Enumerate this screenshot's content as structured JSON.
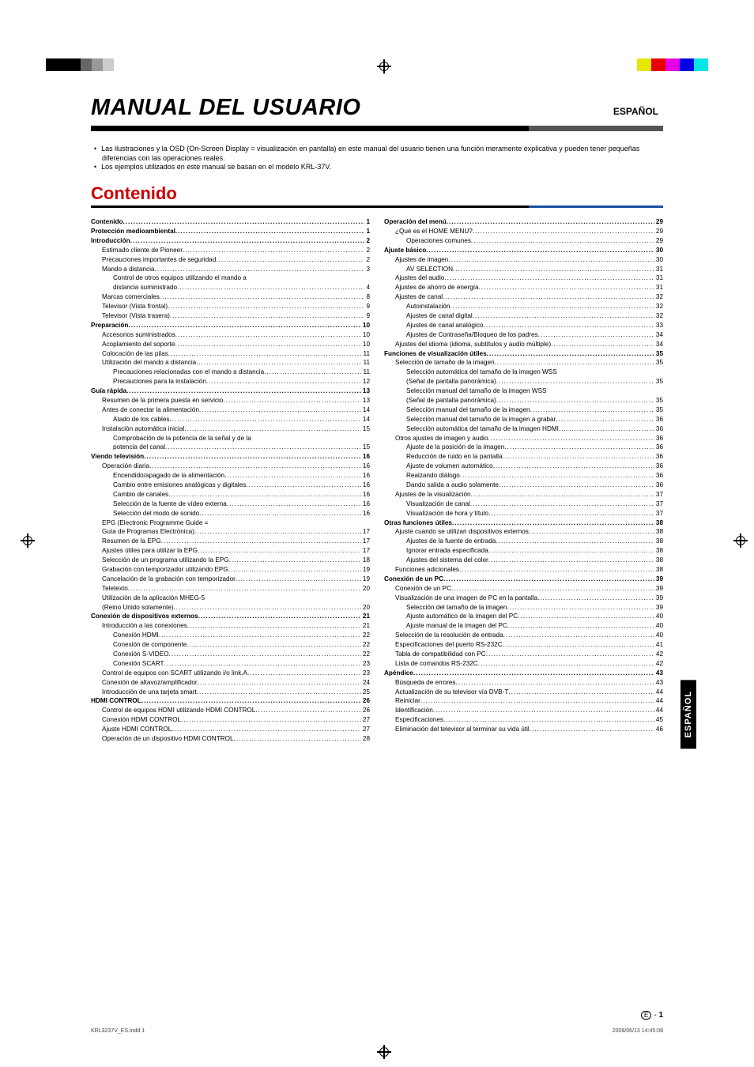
{
  "document": {
    "title": "MANUAL DEL USUARIO",
    "language_badge": "ESPAÑOL",
    "notes": [
      "Las ilustraciones y la OSD (On-Screen Display = visualización en pantalla) en este manual del usuario tienen una función meramente explicativa y pueden tener pequeñas diferencias con las operaciones reales.",
      "Los ejemplos utilizados en este manual se basan en el modelo KRL-37V."
    ],
    "section_heading": "Contenido",
    "side_tab": "ESPAÑOL",
    "page_number_prefix": "E",
    "page_number": "1",
    "footer_left": "KRL3237V_ES.indd   1",
    "footer_right": "2008/06/13   14:45:08",
    "colors": {
      "heading_red": "#c00000",
      "rule_black": "#000000",
      "rule_gray": "#555555",
      "rule_blue": "#1a4fa0",
      "text": "#000000",
      "side_tab_bg": "#000000",
      "side_tab_fg": "#ffffff"
    },
    "typography": {
      "title_pt": 29,
      "title_style": "bold italic",
      "heading_pt": 22,
      "body_pt": 9,
      "toc_pt": 8.2
    }
  },
  "toc_left": [
    {
      "lvl": 0,
      "t": "Contenido",
      "p": "1"
    },
    {
      "lvl": 0,
      "t": "Protección medioambiental",
      "p": "1"
    },
    {
      "lvl": 0,
      "t": "Introducción",
      "p": "2"
    },
    {
      "lvl": 1,
      "t": "Estimado cliente de Pioneer",
      "p": "2"
    },
    {
      "lvl": 1,
      "t": "Precauciones importantes de seguridad",
      "p": "2"
    },
    {
      "lvl": 1,
      "t": "Mando a distancia",
      "p": "3"
    },
    {
      "lvl": 2,
      "t": "Control de otros equipos utilizando el mando a",
      "p": ""
    },
    {
      "lvl": 2,
      "t": "distancia suministrado",
      "p": "4"
    },
    {
      "lvl": 1,
      "t": "Marcas comerciales",
      "p": "8"
    },
    {
      "lvl": 1,
      "t": "Televisor (Vista frontal)",
      "p": "9"
    },
    {
      "lvl": 1,
      "t": "Televisor (Vista trasera)",
      "p": "9"
    },
    {
      "lvl": 0,
      "t": "Preparación",
      "p": "10"
    },
    {
      "lvl": 1,
      "t": "Accesorios suministrados",
      "p": "10"
    },
    {
      "lvl": 1,
      "t": "Acoplamiento del soporte",
      "p": "10"
    },
    {
      "lvl": 1,
      "t": "Colocación de las pilas",
      "p": "11"
    },
    {
      "lvl": 1,
      "t": "Utilización del mando a distancia",
      "p": "11"
    },
    {
      "lvl": 2,
      "t": "Precauciones relacionadas con el mando a distancia",
      "p": "11"
    },
    {
      "lvl": 2,
      "t": "Precauciones para la instalación",
      "p": "12"
    },
    {
      "lvl": 0,
      "t": "Guía rápida",
      "p": "13"
    },
    {
      "lvl": 1,
      "t": "Resumen de la primera puesta en servicio",
      "p": "13"
    },
    {
      "lvl": 1,
      "t": "Antes de conectar la alimentación",
      "p": "14"
    },
    {
      "lvl": 2,
      "t": "Atado de los cables",
      "p": "14"
    },
    {
      "lvl": 1,
      "t": "Instalación automática inicial",
      "p": "15"
    },
    {
      "lvl": 2,
      "t": "Comprobación de la potencia de la señal y de la",
      "p": ""
    },
    {
      "lvl": 2,
      "t": "potencia del canal",
      "p": "15"
    },
    {
      "lvl": 0,
      "t": "Viendo televisión",
      "p": "16"
    },
    {
      "lvl": 1,
      "t": "Operación diaria",
      "p": "16"
    },
    {
      "lvl": 2,
      "t": "Encendido/apagado de la alimentación",
      "p": "16"
    },
    {
      "lvl": 2,
      "t": "Cambio entre emisiones analógicas y digitales",
      "p": "16"
    },
    {
      "lvl": 2,
      "t": "Cambio de canales",
      "p": "16"
    },
    {
      "lvl": 2,
      "t": "Selección de la fuente de vídeo externa",
      "p": "16"
    },
    {
      "lvl": 2,
      "t": "Selección del modo de sonido",
      "p": "16"
    },
    {
      "lvl": 1,
      "t": "EPG (Electronic Programme Guide =",
      "p": ""
    },
    {
      "lvl": 1,
      "t": "Guía de Programas Electrónica)",
      "p": "17"
    },
    {
      "lvl": 1,
      "t": "Resumen de la EPG",
      "p": "17"
    },
    {
      "lvl": 1,
      "t": "Ajustes útiles para utilizar la EPG",
      "p": "17"
    },
    {
      "lvl": 1,
      "t": "Selección de un programa utilizando la EPG",
      "p": "18"
    },
    {
      "lvl": 1,
      "t": "Grabación con temporizador utilizando EPG",
      "p": "19"
    },
    {
      "lvl": 1,
      "t": "Cancelación de la grabación con temporizador",
      "p": "19"
    },
    {
      "lvl": 1,
      "t": "Teletexto",
      "p": "20"
    },
    {
      "lvl": 1,
      "t": "Utilización de la aplicación MHEG-5",
      "p": ""
    },
    {
      "lvl": 1,
      "t": "(Reino Unido solamente)",
      "p": "20"
    },
    {
      "lvl": 0,
      "t": "Conexión de dispositivos externos",
      "p": "21"
    },
    {
      "lvl": 1,
      "t": "Introducción a las conexiones",
      "p": "21"
    },
    {
      "lvl": 2,
      "t": "Conexión HDMI",
      "p": "22"
    },
    {
      "lvl": 2,
      "t": "Conexión de componente",
      "p": "22"
    },
    {
      "lvl": 2,
      "t": "Conexión S-VIDEO",
      "p": "22"
    },
    {
      "lvl": 2,
      "t": "Conexión SCART",
      "p": "23"
    },
    {
      "lvl": 1,
      "t": "Control de equipos con SCART utilizando i/o link.A",
      "p": "23"
    },
    {
      "lvl": 1,
      "t": "Conexión de altavoz/amplificador",
      "p": "24"
    },
    {
      "lvl": 1,
      "t": "Introducción de una tarjeta smart",
      "p": "25"
    },
    {
      "lvl": 0,
      "t": "HDMI CONTROL",
      "p": "26"
    },
    {
      "lvl": 1,
      "t": "Control de equipos HDMI utilizando HDMI CONTROL",
      "p": "26"
    },
    {
      "lvl": 1,
      "t": "Conexión HDMI CONTROL",
      "p": "27"
    },
    {
      "lvl": 1,
      "t": "Ajuste HDMI CONTROL",
      "p": "27"
    },
    {
      "lvl": 1,
      "t": "Operación de un dispositivo HDMI CONTROL",
      "p": "28"
    }
  ],
  "toc_right": [
    {
      "lvl": 0,
      "t": "Operación del menú",
      "p": "29"
    },
    {
      "lvl": 1,
      "t": "¿Qué es el HOME MENU?",
      "p": "29"
    },
    {
      "lvl": 2,
      "t": "Operaciones comunes",
      "p": "29"
    },
    {
      "lvl": 0,
      "t": "Ajuste básico",
      "p": "30"
    },
    {
      "lvl": 1,
      "t": "Ajustes de imagen",
      "p": "30"
    },
    {
      "lvl": 2,
      "t": "AV SELECTION",
      "p": "31"
    },
    {
      "lvl": 1,
      "t": "Ajustes del audio",
      "p": "31"
    },
    {
      "lvl": 1,
      "t": "Ajustes de ahorro de energía",
      "p": "31"
    },
    {
      "lvl": 1,
      "t": "Ajustes de canal",
      "p": "32"
    },
    {
      "lvl": 2,
      "t": "Autoinstalación",
      "p": "32"
    },
    {
      "lvl": 2,
      "t": "Ajustes de canal digital",
      "p": "32"
    },
    {
      "lvl": 2,
      "t": "Ajustes de canal analógico",
      "p": "33"
    },
    {
      "lvl": 2,
      "t": "Ajustes de Contraseña/Bloqueo de los padres",
      "p": "34"
    },
    {
      "lvl": 1,
      "t": "Ajustes del idioma (idioma, subtítulos y audio múltiple)",
      "p": "34"
    },
    {
      "lvl": 0,
      "t": "Funciones de visualización útiles",
      "p": "35"
    },
    {
      "lvl": 1,
      "t": "Selección de tamaño de la imagen",
      "p": "35"
    },
    {
      "lvl": 2,
      "t": "Selección automática del tamaño de la imagen WSS",
      "p": ""
    },
    {
      "lvl": 2,
      "t": "(Señal de pantalla panorámica)",
      "p": "35"
    },
    {
      "lvl": 2,
      "t": "Selección manual del tamaño de la imagen WSS",
      "p": ""
    },
    {
      "lvl": 2,
      "t": "(Señal de pantalla panorámica)",
      "p": "35"
    },
    {
      "lvl": 2,
      "t": "Selección manual del tamaño de la imagen",
      "p": "35"
    },
    {
      "lvl": 2,
      "t": "Selección manual del tamaño de la imagen a grabar",
      "p": "36"
    },
    {
      "lvl": 2,
      "t": "Selección automática del tamaño de la imagen HDMI",
      "p": "36"
    },
    {
      "lvl": 1,
      "t": "Otros ajustes de imagen y audio",
      "p": "36"
    },
    {
      "lvl": 2,
      "t": "Ajuste de la posición de la imagen",
      "p": "36"
    },
    {
      "lvl": 2,
      "t": "Reducción de ruido en la pantalla",
      "p": "36"
    },
    {
      "lvl": 2,
      "t": "Ajuste de volumen automático",
      "p": "36"
    },
    {
      "lvl": 2,
      "t": "Realzando diálogo",
      "p": "36"
    },
    {
      "lvl": 2,
      "t": "Dando salida a audio solamente",
      "p": "36"
    },
    {
      "lvl": 1,
      "t": "Ajustes de la visualización",
      "p": "37"
    },
    {
      "lvl": 2,
      "t": "Visualización de canal",
      "p": "37"
    },
    {
      "lvl": 2,
      "t": "Visualización de hora y título",
      "p": "37"
    },
    {
      "lvl": 0,
      "t": "Otras funciones útiles",
      "p": "38"
    },
    {
      "lvl": 1,
      "t": "Ajuste cuando se utilizan dispositivos externos",
      "p": "38"
    },
    {
      "lvl": 2,
      "t": "Ajustes de la fuente de entrada",
      "p": "38"
    },
    {
      "lvl": 2,
      "t": "Ignorar entrada especificada",
      "p": "38"
    },
    {
      "lvl": 2,
      "t": "Ajustes del sistema del color",
      "p": "38"
    },
    {
      "lvl": 1,
      "t": "Funciones adicionales",
      "p": "38"
    },
    {
      "lvl": 0,
      "t": "Conexión de un PC",
      "p": "39"
    },
    {
      "lvl": 1,
      "t": "Conexión de un PC",
      "p": "39"
    },
    {
      "lvl": 1,
      "t": "Visualización de una imagen de PC en la pantalla",
      "p": "39"
    },
    {
      "lvl": 2,
      "t": "Selección del tamaño de la imagen",
      "p": "39"
    },
    {
      "lvl": 2,
      "t": "Ajuste automático de la imagen del PC",
      "p": "40"
    },
    {
      "lvl": 2,
      "t": "Ajuste manual de la imagen del PC",
      "p": "40"
    },
    {
      "lvl": 1,
      "t": "Selección de la resolución de entrada",
      "p": "40"
    },
    {
      "lvl": 1,
      "t": "Especificaciones del puerto RS-232C",
      "p": "41"
    },
    {
      "lvl": 1,
      "t": "Tabla de compatibilidad con PC",
      "p": "42"
    },
    {
      "lvl": 1,
      "t": "Lista de comandos RS-232C",
      "p": "42"
    },
    {
      "lvl": 0,
      "t": "Apéndice",
      "p": "43"
    },
    {
      "lvl": 1,
      "t": "Búsqueda de errores",
      "p": "43"
    },
    {
      "lvl": 1,
      "t": "Actualización de su televisor vía DVB-T",
      "p": "44"
    },
    {
      "lvl": 1,
      "t": "Reiniciar",
      "p": "44"
    },
    {
      "lvl": 1,
      "t": "Identificación",
      "p": "44"
    },
    {
      "lvl": 1,
      "t": "Especificaciones",
      "p": "45"
    },
    {
      "lvl": 1,
      "t": "Eliminación del televisor al terminar su vida útil",
      "p": "46"
    }
  ]
}
